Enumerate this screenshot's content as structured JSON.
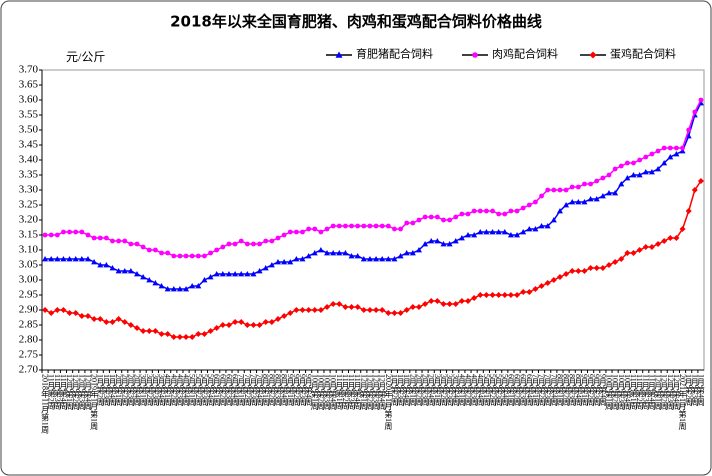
{
  "chart_data": {
    "type": "line",
    "title": "2018年以来全国育肥猪、肉鸡和蛋鸡配合饲料价格曲线",
    "y_label": "元/公斤",
    "categories": [
      "2018年11月第1周",
      "11月第2周",
      "11月第3周",
      "11月第4周",
      "12月第1周",
      "12月第2周",
      "12月第3周",
      "12月第4周",
      "2019年1月第1周",
      "1月第2周",
      "1月第3周",
      "1月第4周",
      "2月第1周",
      "2月第2周",
      "2月第3周",
      "2月第4周",
      "3月第1周",
      "3月第2周",
      "3月第3周",
      "3月第4周",
      "4月第1周",
      "4月第2周",
      "4月第3周",
      "4月第4周",
      "5月第1周",
      "5月第2周",
      "5月第3周",
      "5月第4周",
      "6月第1周",
      "6月第2周",
      "6月第3周",
      "6月第4周",
      "7月第1周",
      "7月第2周",
      "7月第3周",
      "7月第4周",
      "8月第1周",
      "8月第2周",
      "8月第3周",
      "8月第4周",
      "9月第1周",
      "9月第2周",
      "9月第3周",
      "9月第4周",
      "10月第1周",
      "10月第2周",
      "10月第3周",
      "10月第4周",
      "11月第1周",
      "11月第2周",
      "11月第3周",
      "11月第4周",
      "12月第1周",
      "12月第2周",
      "12月第3周",
      "12月第4周",
      "2020年1月第1周",
      "1月第2周",
      "1月第3周",
      "1月第4周",
      "2月第1周",
      "2月第2周",
      "2月第3周",
      "2月第4周",
      "3月第1周",
      "3月第2周",
      "3月第3周",
      "3月第4周",
      "4月第1周",
      "4月第2周",
      "4月第3周",
      "4月第4周",
      "5月第1周",
      "5月第2周",
      "5月第3周",
      "5月第4周",
      "6月第1周",
      "6月第2周",
      "6月第3周",
      "6月第4周",
      "7月第1周",
      "7月第2周",
      "7月第3周",
      "7月第4周",
      "8月第1周",
      "8月第2周",
      "8月第3周",
      "8月第4周",
      "9月第1周",
      "9月第2周",
      "9月第3周",
      "9月第4周",
      "10月第1周",
      "10月第2周",
      "10月第3周",
      "10月第4周",
      "11月第1周",
      "11月第2周",
      "11月第3周",
      "11月第4周",
      "12月第1周",
      "12月第2周",
      "12月第3周",
      "12月第4周",
      "2021年1月第1周",
      "1月第2周",
      "1月第3周",
      "1月第4周"
    ],
    "series": [
      {
        "name": "育肥猪配合饲料",
        "color": "#0000ff",
        "marker": "triangle",
        "values": [
          3.07,
          3.07,
          3.07,
          3.07,
          3.07,
          3.07,
          3.07,
          3.07,
          3.06,
          3.05,
          3.05,
          3.04,
          3.03,
          3.03,
          3.03,
          3.02,
          3.01,
          3.0,
          2.99,
          2.98,
          2.97,
          2.97,
          2.97,
          2.97,
          2.98,
          2.98,
          3.0,
          3.01,
          3.02,
          3.02,
          3.02,
          3.02,
          3.02,
          3.02,
          3.02,
          3.03,
          3.04,
          3.05,
          3.06,
          3.06,
          3.06,
          3.07,
          3.07,
          3.08,
          3.09,
          3.1,
          3.09,
          3.09,
          3.09,
          3.09,
          3.08,
          3.08,
          3.07,
          3.07,
          3.07,
          3.07,
          3.07,
          3.07,
          3.08,
          3.09,
          3.09,
          3.1,
          3.12,
          3.13,
          3.13,
          3.12,
          3.12,
          3.13,
          3.14,
          3.15,
          3.15,
          3.16,
          3.16,
          3.16,
          3.16,
          3.16,
          3.15,
          3.15,
          3.16,
          3.17,
          3.17,
          3.18,
          3.18,
          3.2,
          3.23,
          3.25,
          3.26,
          3.26,
          3.26,
          3.27,
          3.27,
          3.28,
          3.29,
          3.29,
          3.32,
          3.34,
          3.35,
          3.35,
          3.36,
          3.36,
          3.37,
          3.39,
          3.41,
          3.42,
          3.43,
          3.48,
          3.55,
          3.59
        ]
      },
      {
        "name": "肉鸡配合饲料",
        "color": "#ff00ff",
        "marker": "circle",
        "values": [
          3.15,
          3.15,
          3.15,
          3.16,
          3.16,
          3.16,
          3.16,
          3.15,
          3.14,
          3.14,
          3.14,
          3.13,
          3.13,
          3.13,
          3.12,
          3.12,
          3.11,
          3.1,
          3.1,
          3.09,
          3.09,
          3.08,
          3.08,
          3.08,
          3.08,
          3.08,
          3.08,
          3.09,
          3.1,
          3.11,
          3.12,
          3.12,
          3.13,
          3.12,
          3.12,
          3.12,
          3.13,
          3.13,
          3.14,
          3.15,
          3.16,
          3.16,
          3.16,
          3.17,
          3.17,
          3.16,
          3.17,
          3.18,
          3.18,
          3.18,
          3.18,
          3.18,
          3.18,
          3.18,
          3.18,
          3.18,
          3.18,
          3.17,
          3.17,
          3.19,
          3.19,
          3.2,
          3.21,
          3.21,
          3.21,
          3.2,
          3.2,
          3.21,
          3.22,
          3.22,
          3.23,
          3.23,
          3.23,
          3.23,
          3.22,
          3.22,
          3.23,
          3.23,
          3.24,
          3.25,
          3.26,
          3.28,
          3.3,
          3.3,
          3.3,
          3.3,
          3.31,
          3.31,
          3.32,
          3.32,
          3.33,
          3.34,
          3.35,
          3.37,
          3.38,
          3.39,
          3.39,
          3.4,
          3.41,
          3.42,
          3.43,
          3.44,
          3.44,
          3.44,
          3.44,
          3.5,
          3.56,
          3.6
        ]
      },
      {
        "name": "蛋鸡配合饲料",
        "color": "#ff0000",
        "marker": "diamond",
        "values": [
          2.9,
          2.89,
          2.9,
          2.9,
          2.89,
          2.89,
          2.88,
          2.88,
          2.87,
          2.87,
          2.86,
          2.86,
          2.87,
          2.86,
          2.85,
          2.84,
          2.83,
          2.83,
          2.83,
          2.82,
          2.82,
          2.81,
          2.81,
          2.81,
          2.81,
          2.82,
          2.82,
          2.83,
          2.84,
          2.85,
          2.85,
          2.86,
          2.86,
          2.85,
          2.85,
          2.85,
          2.86,
          2.86,
          2.87,
          2.88,
          2.89,
          2.9,
          2.9,
          2.9,
          2.9,
          2.9,
          2.91,
          2.92,
          2.92,
          2.91,
          2.91,
          2.91,
          2.9,
          2.9,
          2.9,
          2.9,
          2.89,
          2.89,
          2.89,
          2.9,
          2.91,
          2.91,
          2.92,
          2.93,
          2.93,
          2.92,
          2.92,
          2.92,
          2.93,
          2.93,
          2.94,
          2.95,
          2.95,
          2.95,
          2.95,
          2.95,
          2.95,
          2.95,
          2.96,
          2.96,
          2.97,
          2.98,
          2.99,
          3.0,
          3.01,
          3.02,
          3.03,
          3.03,
          3.03,
          3.04,
          3.04,
          3.04,
          3.05,
          3.06,
          3.07,
          3.09,
          3.09,
          3.1,
          3.11,
          3.11,
          3.12,
          3.13,
          3.14,
          3.14,
          3.17,
          3.23,
          3.3,
          3.33
        ]
      }
    ],
    "ylim": [
      2.7,
      3.7
    ],
    "yticks": [
      {
        "value": 2.7,
        "label": "2.70"
      },
      2.75,
      {
        "value": 2.8,
        "label": "2.80"
      },
      2.85,
      {
        "value": 2.9,
        "label": "2.90"
      },
      2.95,
      {
        "value": 3.0,
        "label": "3.00"
      },
      3.05,
      {
        "value": 3.1,
        "label": "3.10"
      },
      3.15,
      {
        "value": 3.2,
        "label": "3.20"
      },
      3.25,
      {
        "value": 3.3,
        "label": "3.30"
      },
      3.35,
      {
        "value": 3.4,
        "label": "3.40"
      },
      3.45,
      {
        "value": 3.5,
        "label": "3.50"
      },
      3.55,
      {
        "value": 3.6,
        "label": "3.60"
      },
      3.65,
      {
        "value": 3.7,
        "label": "3.70"
      }
    ],
    "grid": false,
    "legend": "top-right"
  }
}
